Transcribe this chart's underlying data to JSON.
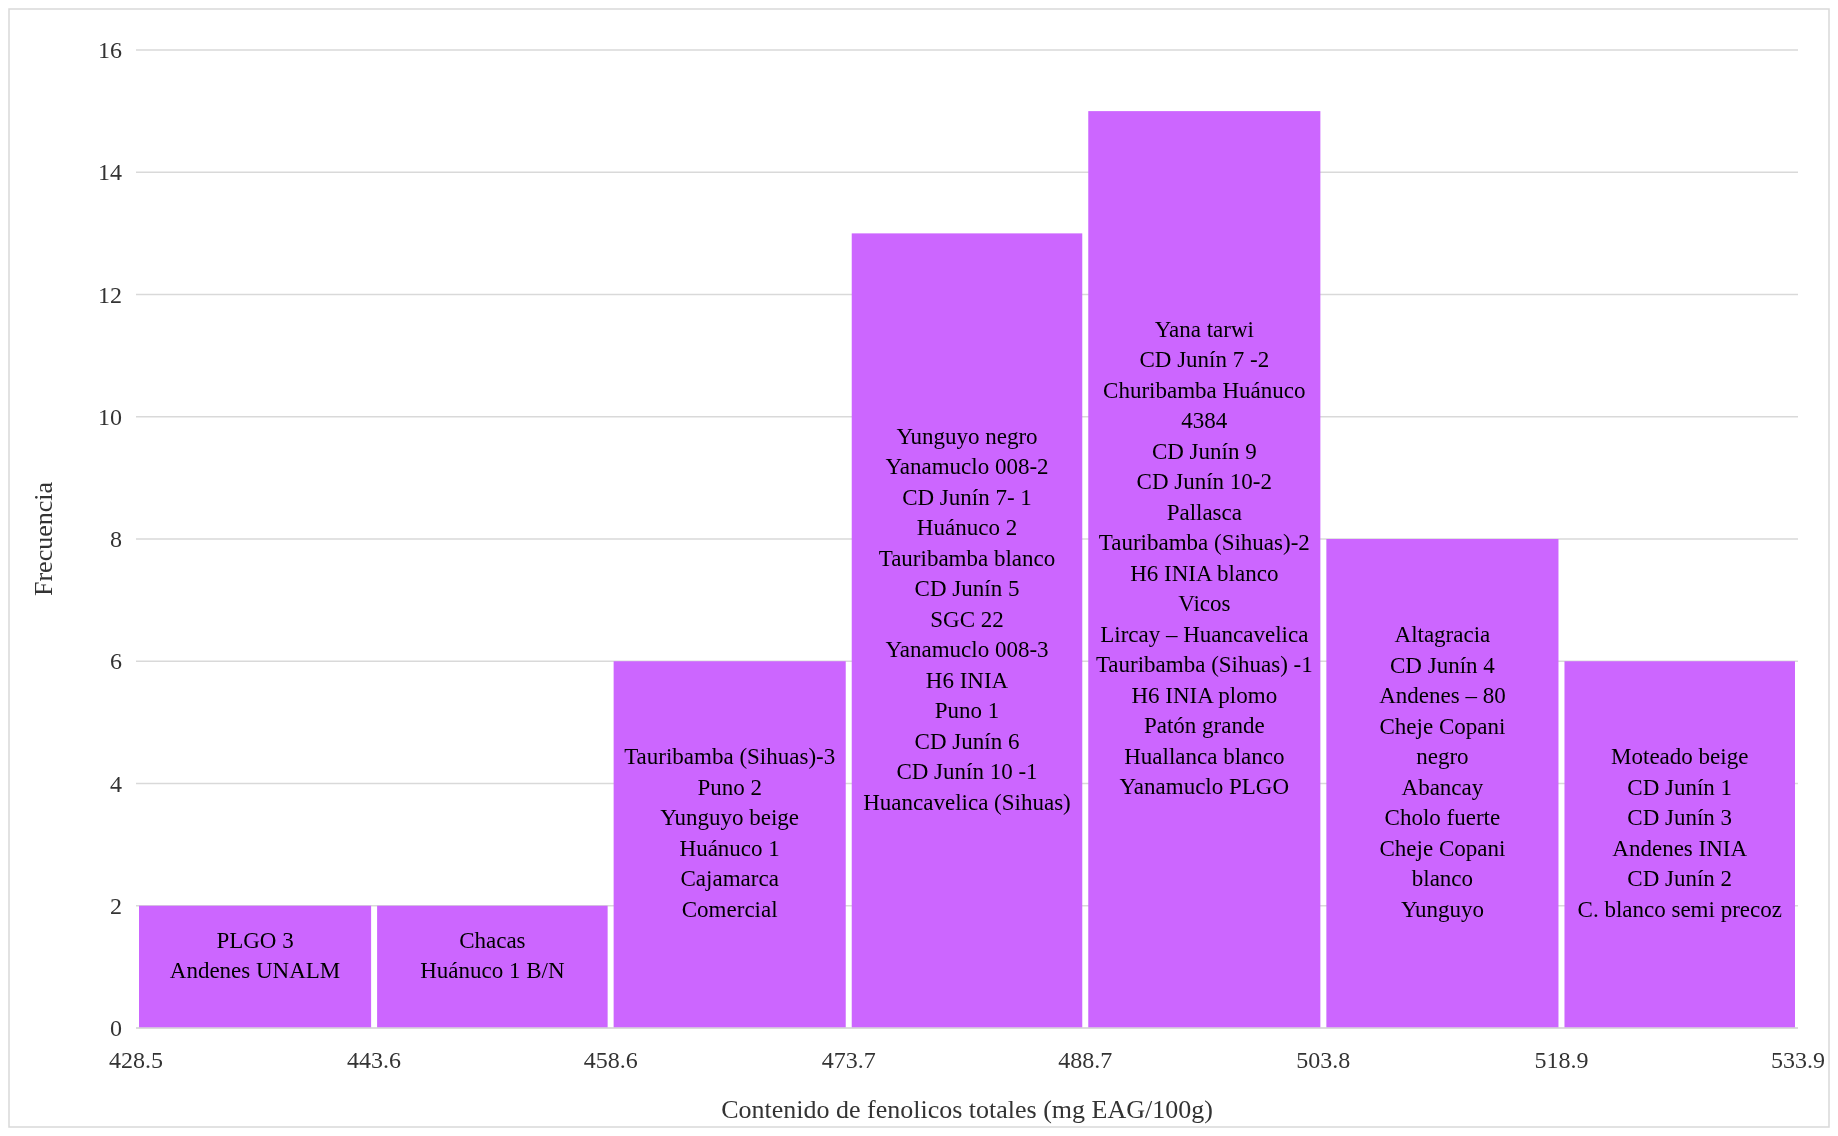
{
  "chart_data": {
    "type": "histogram",
    "xlabel": "Contenido de fenolicos totales (mg EAG/100g)",
    "ylabel": "Frecuencia",
    "bins": [
      428.5,
      443.6,
      458.6,
      473.7,
      488.7,
      503.8,
      518.9,
      533.9
    ],
    "values": [
      2,
      2,
      6,
      13,
      15,
      8,
      6
    ],
    "color": "#cc66ff",
    "xlim": [
      428.5,
      533.9
    ],
    "xticks": [
      428.5,
      443.6,
      458.6,
      473.7,
      488.7,
      503.8,
      518.9,
      533.9
    ],
    "ylim": [
      0,
      16
    ],
    "yticks": [
      0,
      2,
      4,
      6,
      8,
      10,
      12,
      14,
      16
    ],
    "grid": "y",
    "value_labels": [
      "PLGO 3\nAndenes UNALM",
      "Chacas\nHuánuco 1 B/N",
      "Tauribamba (Sihuas)-3\nPuno 2\nYunguyo beige\nHuánuco 1\nCajamarca\nComercial",
      "Yunguyo negro\nYanamuclo 008-2\nCD Junín 7- 1\nHuánuco 2\nTauribamba blanco\nCD Junín 5\nSGC 22\nYanamuclo 008-3\nH6 INIA\nPuno 1\nCD Junín 6\nCD Junín 10 -1\nHuancavelica (Sihuas)",
      "Yana tarwi\nCD Junín 7 -2\nChuribamba Huánuco\n4384\nCD Junín 9\nCD Junín 10-2\nPallasca\nTauribamba (Sihuas)-2\nH6 INIA blanco\nVicos\nLircay – Huancavelica\nTauribamba (Sihuas) -1\nH6 INIA plomo\nPatón grande\nHuallanca blanco\nYanamuclo PLGO",
      "Altagracia\nCD Junín 4\nAndenes – 80\nCheje Copani\nnegro\nAbancay\nCholo fuerte\nCheje Copani\nblanco\nYunguyo",
      "Moteado beige\nCD Junín 1\nCD Junín 3\nAndenes INIA\nCD Junín 2\nC. blanco semi precoz"
    ]
  }
}
